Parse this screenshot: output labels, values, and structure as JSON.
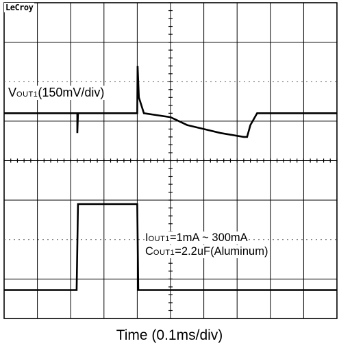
{
  "brand": "LeCroy",
  "channel1_label": {
    "main": "V",
    "sub": "OUT1",
    "rest": "(150mV/div)"
  },
  "annotation_current": {
    "main": "I",
    "sub": "OUT1",
    "rest": "=1mA ~ 300mA"
  },
  "annotation_cap": {
    "main": "C",
    "sub": "OUT1",
    "rest": "=2.2uF(Aluminum)"
  },
  "x_caption": "Time (0.1ms/div)",
  "colors": {
    "trace": "#000000",
    "grid": "#000000",
    "dots": "#555555"
  },
  "chart_data": {
    "type": "line",
    "title": "",
    "xlabel": "Time (0.1ms/div)",
    "x_unit": "ms",
    "xlim": [
      0,
      1.0
    ],
    "grid": true,
    "divisions": {
      "x": 10,
      "y": 8
    },
    "series": [
      {
        "name": "VOUT1",
        "scale": "150mV/div",
        "x": [
          0,
          0.22,
          0.22,
          0.222,
          0.225,
          0.4,
          0.401,
          0.405,
          0.42,
          0.5,
          0.55,
          0.6,
          0.65,
          0.72,
          0.73,
          0.74,
          0.76,
          1.0
        ],
        "y_div": [
          5.2,
          5.2,
          4.7,
          5.2,
          5.2,
          5.2,
          6.4,
          5.6,
          5.2,
          5.1,
          4.9,
          4.8,
          4.7,
          4.6,
          4.6,
          4.9,
          5.2,
          5.2
        ]
      },
      {
        "name": "IOUT1",
        "x": [
          0,
          0.218,
          0.222,
          0.4,
          0.403,
          1.0
        ],
        "y_div": [
          0.72,
          0.72,
          2.9,
          2.9,
          0.72,
          0.72
        ]
      }
    ]
  }
}
